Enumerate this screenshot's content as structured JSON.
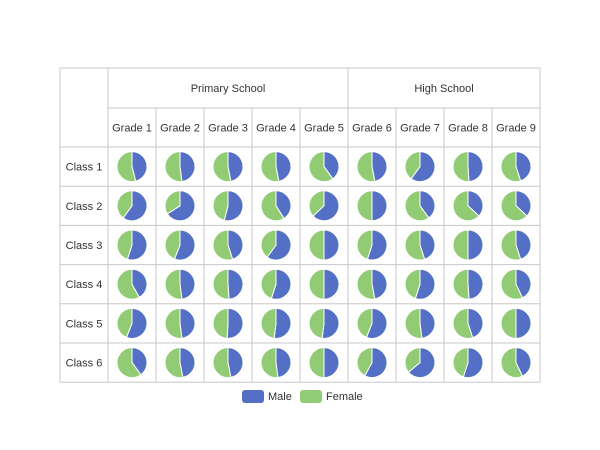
{
  "chart_data": {
    "type": "pie",
    "title": "",
    "groups": [
      {
        "label": "Primary School",
        "span": 5
      },
      {
        "label": "High School",
        "span": 4
      }
    ],
    "columns": [
      "Grade 1",
      "Grade 2",
      "Grade 3",
      "Grade 4",
      "Grade 5",
      "Grade 6",
      "Grade 7",
      "Grade 8",
      "Grade 9"
    ],
    "rows": [
      "Class 1",
      "Class 2",
      "Class 3",
      "Class 4",
      "Class 5",
      "Class 6"
    ],
    "series": [
      {
        "name": "Male",
        "color": "#5470c6"
      },
      {
        "name": "Female",
        "color": "#91cc75"
      }
    ],
    "male_share": [
      [
        0.46,
        0.48,
        0.47,
        0.47,
        0.4,
        0.47,
        0.6,
        0.49,
        0.45
      ],
      [
        0.6,
        0.66,
        0.54,
        0.41,
        0.63,
        0.5,
        0.4,
        0.37,
        0.37
      ],
      [
        0.55,
        0.56,
        0.45,
        0.6,
        0.5,
        0.55,
        0.45,
        0.5,
        0.45
      ],
      [
        0.42,
        0.48,
        0.49,
        0.55,
        0.5,
        0.47,
        0.55,
        0.49,
        0.43
      ],
      [
        0.56,
        0.48,
        0.51,
        0.52,
        0.52,
        0.56,
        0.48,
        0.45,
        0.5
      ],
      [
        0.4,
        0.47,
        0.47,
        0.48,
        0.5,
        0.58,
        0.64,
        0.55,
        0.43
      ]
    ],
    "legend_position": "bottom"
  }
}
